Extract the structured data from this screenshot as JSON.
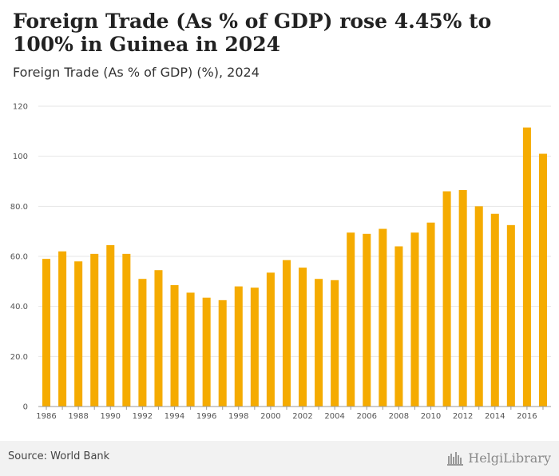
{
  "header": {
    "title": "Foreign Trade (As % of GDP) rose 4.45% to 100% in Guinea in 2024",
    "subtitle": "Foreign Trade (As % of GDP) (%), 2024"
  },
  "footer": {
    "source": "Source: World Bank",
    "logo_text": "HelgiLibrary"
  },
  "colors": {
    "bar": "#f5ab00",
    "grid": "#e6e6e6",
    "axis": "#999999"
  },
  "chart_data": {
    "type": "bar",
    "title": "",
    "xlabel": "",
    "ylabel": "",
    "ylim": [
      0,
      120
    ],
    "yticks": [
      "0",
      "20.0",
      "40.0",
      "60.0",
      "80.0",
      "100",
      "120"
    ],
    "grid": true,
    "categories": [
      "1986",
      "1987",
      "1988",
      "1989",
      "1990",
      "1991",
      "1992",
      "1993",
      "1994",
      "1995",
      "1996",
      "1997",
      "1998",
      "1999",
      "2000",
      "2001",
      "2002",
      "2003",
      "2004",
      "2005",
      "2006",
      "2007",
      "2008",
      "2009",
      "2010",
      "2011",
      "2012",
      "2013",
      "2014",
      "2015",
      "2016",
      "2017"
    ],
    "xtick_labels": [
      "1986",
      "1988",
      "1990",
      "1992",
      "1994",
      "1996",
      "1998",
      "2000",
      "2002",
      "2004",
      "2006",
      "2008",
      "2010",
      "2012",
      "2014",
      "2016"
    ],
    "values": [
      59,
      62,
      58,
      61,
      64.5,
      61,
      51,
      54.5,
      48.5,
      45.5,
      43.5,
      42.5,
      48,
      47.5,
      53.5,
      58.5,
      55.5,
      51,
      50.5,
      69.5,
      69,
      71,
      64,
      69.5,
      73.5,
      86,
      86.5,
      80,
      77,
      72.5,
      111.5,
      101
    ]
  }
}
